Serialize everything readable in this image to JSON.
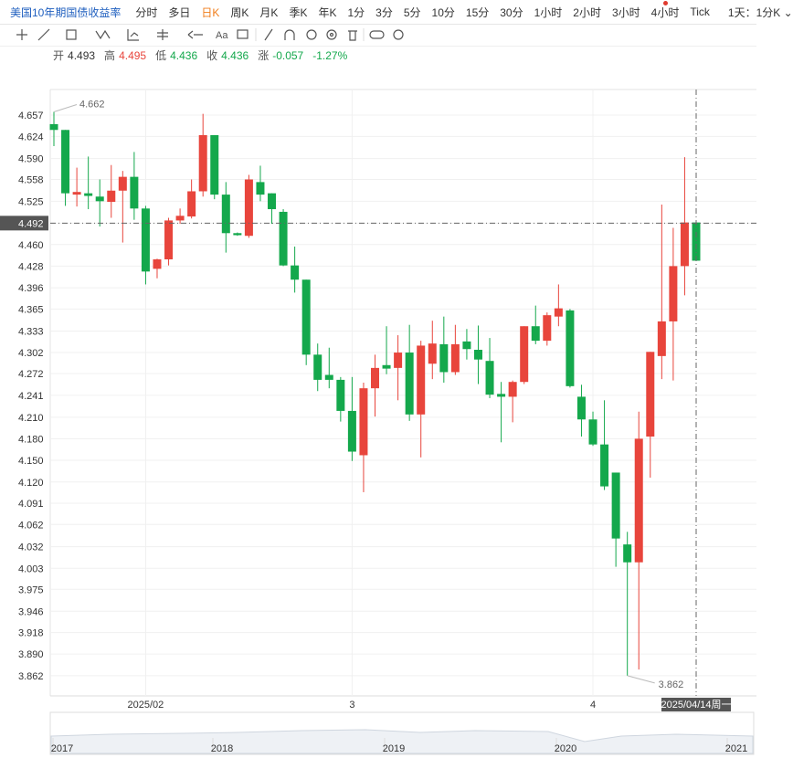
{
  "toolbar": {
    "symbol": "美国10年期国债收益率",
    "periods": [
      "分时",
      "多日",
      "日K",
      "周K",
      "月K",
      "季K",
      "年K",
      "1分",
      "3分",
      "5分",
      "10分",
      "15分",
      "30分",
      "1小时",
      "2小时",
      "3小时",
      "4小时",
      "Tick"
    ],
    "range": "1天：1分K",
    "text_tool": "Aa"
  },
  "quote": {
    "labels": [
      "开",
      "高",
      "低",
      "收",
      "涨"
    ],
    "values": [
      4.493,
      4.495,
      4.436,
      4.436,
      -0.057
    ],
    "change_pct": "-1.27%"
  },
  "chart_data": {
    "type": "candlestick",
    "categories": [
      null,
      null,
      null,
      null,
      null,
      null,
      null,
      null,
      "2025/02",
      null,
      null,
      null,
      null,
      null,
      null,
      null,
      null,
      null,
      null,
      null,
      null,
      null,
      null,
      null,
      null,
      null,
      "3",
      null,
      null,
      null,
      null,
      null,
      null,
      null,
      null,
      null,
      null,
      null,
      null,
      null,
      null,
      null,
      null,
      null,
      null,
      null,
      null,
      "4",
      null,
      null,
      null,
      null,
      null,
      null,
      null,
      null,
      "2025/04/14周一"
    ],
    "open": [
      4.643,
      4.634,
      4.535,
      4.537,
      4.532,
      4.524,
      4.541,
      4.562,
      4.514,
      4.424,
      4.438,
      4.496,
      4.502,
      4.54,
      4.626,
      4.535,
      4.477,
      4.473,
      4.554,
      4.537,
      4.509,
      4.429,
      4.408,
      4.299,
      4.27,
      4.263,
      4.219,
      4.157,
      4.251,
      4.284,
      4.28,
      4.302,
      4.214,
      4.286,
      4.314,
      4.274,
      4.318,
      4.306,
      4.29,
      4.243,
      4.239,
      4.26,
      4.34,
      4.319,
      4.354,
      4.363,
      4.239,
      4.207,
      4.172,
      4.133,
      4.035,
      4.011,
      4.183,
      4.297,
      4.347,
      4.428,
      4.493
    ],
    "high": [
      4.662,
      4.634,
      4.576,
      4.593,
      4.558,
      4.58,
      4.571,
      4.6,
      4.518,
      4.439,
      4.5,
      4.514,
      4.558,
      4.659,
      4.626,
      4.554,
      4.478,
      4.565,
      4.579,
      4.537,
      4.513,
      4.457,
      4.408,
      4.315,
      4.309,
      4.267,
      4.267,
      4.259,
      4.299,
      4.34,
      4.327,
      4.342,
      4.319,
      4.348,
      4.354,
      4.342,
      4.336,
      4.341,
      4.323,
      4.26,
      4.262,
      4.34,
      4.37,
      4.36,
      4.401,
      4.365,
      4.256,
      4.218,
      4.234,
      4.133,
      4.052,
      4.218,
      4.303,
      4.52,
      4.485,
      4.592,
      4.495
    ],
    "low": [
      4.609,
      4.518,
      4.517,
      4.513,
      4.487,
      4.5,
      4.463,
      4.497,
      4.401,
      4.41,
      4.429,
      4.491,
      4.499,
      4.532,
      4.528,
      4.448,
      4.473,
      4.47,
      4.525,
      4.491,
      4.428,
      4.389,
      4.284,
      4.247,
      4.251,
      4.204,
      4.149,
      4.106,
      4.211,
      4.271,
      4.234,
      4.205,
      4.154,
      4.264,
      4.259,
      4.27,
      4.292,
      4.257,
      4.237,
      4.175,
      4.203,
      4.257,
      4.314,
      4.312,
      4.34,
      4.252,
      4.183,
      4.17,
      4.109,
      4.005,
      3.862,
      3.87,
      4.126,
      4.264,
      4.262,
      4.385,
      4.436
    ],
    "close": [
      4.634,
      4.537,
      4.539,
      4.533,
      4.525,
      4.541,
      4.562,
      4.514,
      4.42,
      4.438,
      4.496,
      4.503,
      4.54,
      4.626,
      4.535,
      4.477,
      4.474,
      4.558,
      4.535,
      4.513,
      4.429,
      4.408,
      4.299,
      4.263,
      4.263,
      4.219,
      4.162,
      4.251,
      4.28,
      4.279,
      4.302,
      4.214,
      4.312,
      4.315,
      4.274,
      4.314,
      4.307,
      4.292,
      4.242,
      4.239,
      4.26,
      4.34,
      4.319,
      4.356,
      4.366,
      4.254,
      4.207,
      4.172,
      4.114,
      4.043,
      4.011,
      4.18,
      4.303,
      4.347,
      4.428,
      4.493,
      4.436
    ],
    "up_color": "#e8453c",
    "down_color": "#14a84c",
    "log_scale": true,
    "grid": true,
    "ylim": [
      3.836,
      4.697
    ],
    "yticks": [
      4.657,
      4.624,
      {
        "value": 4.59,
        "label": "4.590"
      },
      4.558,
      4.525,
      4.492,
      {
        "value": 4.46,
        "label": "4.460"
      },
      4.428,
      4.396,
      4.365,
      4.333,
      4.302,
      4.272,
      4.241,
      {
        "value": 4.21,
        "label": "4.210"
      },
      {
        "value": 4.18,
        "label": "4.180"
      },
      {
        "value": 4.15,
        "label": "4.150"
      },
      {
        "value": 4.12,
        "label": "4.120"
      },
      4.091,
      4.062,
      4.032,
      4.003,
      3.975,
      3.946,
      3.918,
      {
        "value": 3.89,
        "label": "3.890"
      },
      3.862
    ],
    "extremes": {
      "max": 4.662,
      "min": 3.862
    }
  },
  "navigator": {
    "years": [
      "2017",
      "2018",
      "2019",
      "2020",
      "2021"
    ]
  }
}
